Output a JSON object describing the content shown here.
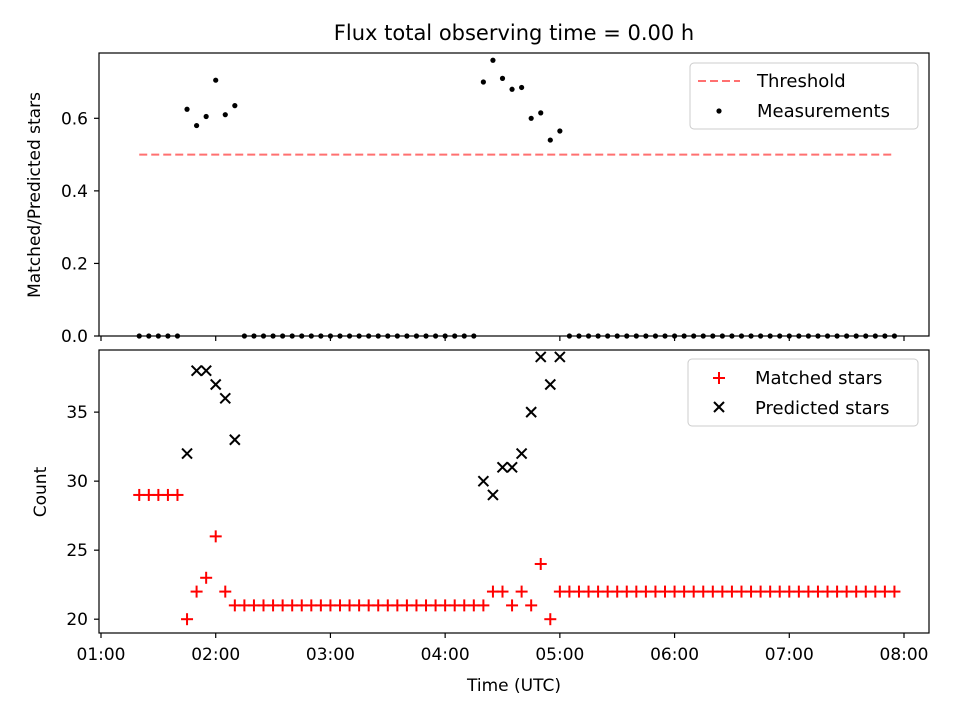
{
  "chart_data": [
    {
      "type": "scatter",
      "title": "Flux total observing time = 0.00 h",
      "xlabel": "",
      "ylabel": "Matched/Predicted stars",
      "xlim": [
        "01:00",
        "08:00"
      ],
      "ylim": [
        0,
        0.78
      ],
      "y_ticks": [
        "0.0",
        "0.2",
        "0.4",
        "0.6"
      ],
      "grid": false,
      "legend": "top-right",
      "threshold": {
        "name": "Threshold",
        "value": 0.5,
        "x_range": [
          "01:20",
          "07:55"
        ],
        "color": "#ff7070",
        "style": "dashed"
      },
      "series": [
        {
          "name": "Measurements",
          "color": "#000000",
          "marker": "dot",
          "x": [
            "01:20",
            "01:25",
            "01:30",
            "01:35",
            "01:40",
            "01:45",
            "01:50",
            "01:55",
            "02:00",
            "02:05",
            "02:10",
            "02:15",
            "02:20",
            "02:25",
            "02:30",
            "02:35",
            "02:40",
            "02:45",
            "02:50",
            "02:55",
            "03:00",
            "03:05",
            "03:10",
            "03:15",
            "03:20",
            "03:25",
            "03:30",
            "03:35",
            "03:40",
            "03:45",
            "03:50",
            "03:55",
            "04:00",
            "04:05",
            "04:10",
            "04:15",
            "04:20",
            "04:25",
            "04:30",
            "04:35",
            "04:40",
            "04:45",
            "04:50",
            "04:55",
            "05:00",
            "05:05",
            "05:10",
            "05:15",
            "05:20",
            "05:25",
            "05:30",
            "05:35",
            "05:40",
            "05:45",
            "05:50",
            "05:55",
            "06:00",
            "06:05",
            "06:10",
            "06:15",
            "06:20",
            "06:25",
            "06:30",
            "06:35",
            "06:40",
            "06:45",
            "06:50",
            "06:55",
            "07:00",
            "07:05",
            "07:10",
            "07:15",
            "07:20",
            "07:25",
            "07:30",
            "07:35",
            "07:40",
            "07:45",
            "07:50",
            "07:55"
          ],
          "y": [
            0,
            0,
            0,
            0,
            0,
            0.625,
            0.58,
            0.605,
            0.705,
            0.61,
            0.635,
            0,
            0,
            0,
            0,
            0,
            0,
            0,
            0,
            0,
            0,
            0,
            0,
            0,
            0,
            0,
            0,
            0,
            0,
            0,
            0,
            0,
            0,
            0,
            0,
            0,
            0.7,
            0.76,
            0.71,
            0.68,
            0.685,
            0.6,
            0.615,
            0.54,
            0.565,
            0,
            0,
            0,
            0,
            0,
            0,
            0,
            0,
            0,
            0,
            0,
            0,
            0,
            0,
            0,
            0,
            0,
            0,
            0,
            0,
            0,
            0,
            0,
            0,
            0,
            0,
            0,
            0,
            0,
            0,
            0,
            0,
            0,
            0,
            0
          ]
        }
      ]
    },
    {
      "type": "scatter",
      "title": "",
      "xlabel": "Time (UTC)",
      "ylabel": "Count",
      "xlim": [
        "01:00",
        "08:00"
      ],
      "x_ticks": [
        "01:00",
        "02:00",
        "03:00",
        "04:00",
        "05:00",
        "06:00",
        "07:00",
        "08:00"
      ],
      "ylim": [
        19,
        39.5
      ],
      "y_ticks": [
        "20",
        "25",
        "30",
        "35"
      ],
      "grid": false,
      "legend": "top-right",
      "series": [
        {
          "name": "Matched stars",
          "color": "#ff0000",
          "marker": "plus",
          "x": [
            "01:20",
            "01:25",
            "01:30",
            "01:35",
            "01:40",
            "01:45",
            "01:50",
            "01:55",
            "02:00",
            "02:05",
            "02:10",
            "02:15",
            "02:20",
            "02:25",
            "02:30",
            "02:35",
            "02:40",
            "02:45",
            "02:50",
            "02:55",
            "03:00",
            "03:05",
            "03:10",
            "03:15",
            "03:20",
            "03:25",
            "03:30",
            "03:35",
            "03:40",
            "03:45",
            "03:50",
            "03:55",
            "04:00",
            "04:05",
            "04:10",
            "04:15",
            "04:20",
            "04:25",
            "04:30",
            "04:35",
            "04:40",
            "04:45",
            "04:50",
            "04:55",
            "05:00",
            "05:05",
            "05:10",
            "05:15",
            "05:20",
            "05:25",
            "05:30",
            "05:35",
            "05:40",
            "05:45",
            "05:50",
            "05:55",
            "06:00",
            "06:05",
            "06:10",
            "06:15",
            "06:20",
            "06:25",
            "06:30",
            "06:35",
            "06:40",
            "06:45",
            "06:50",
            "06:55",
            "07:00",
            "07:05",
            "07:10",
            "07:15",
            "07:20",
            "07:25",
            "07:30",
            "07:35",
            "07:40",
            "07:45",
            "07:50",
            "07:55"
          ],
          "y": [
            29,
            29,
            29,
            29,
            29,
            20,
            22,
            23,
            26,
            22,
            21,
            21,
            21,
            21,
            21,
            21,
            21,
            21,
            21,
            21,
            21,
            21,
            21,
            21,
            21,
            21,
            21,
            21,
            21,
            21,
            21,
            21,
            21,
            21,
            21,
            21,
            21,
            22,
            22,
            21,
            22,
            21,
            24,
            20,
            22,
            22,
            22,
            22,
            22,
            22,
            22,
            22,
            22,
            22,
            22,
            22,
            22,
            22,
            22,
            22,
            22,
            22,
            22,
            22,
            22,
            22,
            22,
            22,
            22,
            22,
            22,
            22,
            22,
            22,
            22,
            22,
            22,
            22,
            22,
            22
          ]
        },
        {
          "name": "Predicted stars",
          "color": "#000000",
          "marker": "x",
          "x": [
            "01:45",
            "01:50",
            "01:55",
            "02:00",
            "02:05",
            "02:10",
            "04:20",
            "04:25",
            "04:30",
            "04:35",
            "04:40",
            "04:45",
            "04:50",
            "04:55",
            "05:00"
          ],
          "y": [
            32,
            38,
            38,
            37,
            36,
            33,
            30,
            29,
            31,
            31,
            32,
            35,
            39,
            37,
            39
          ]
        }
      ]
    }
  ]
}
